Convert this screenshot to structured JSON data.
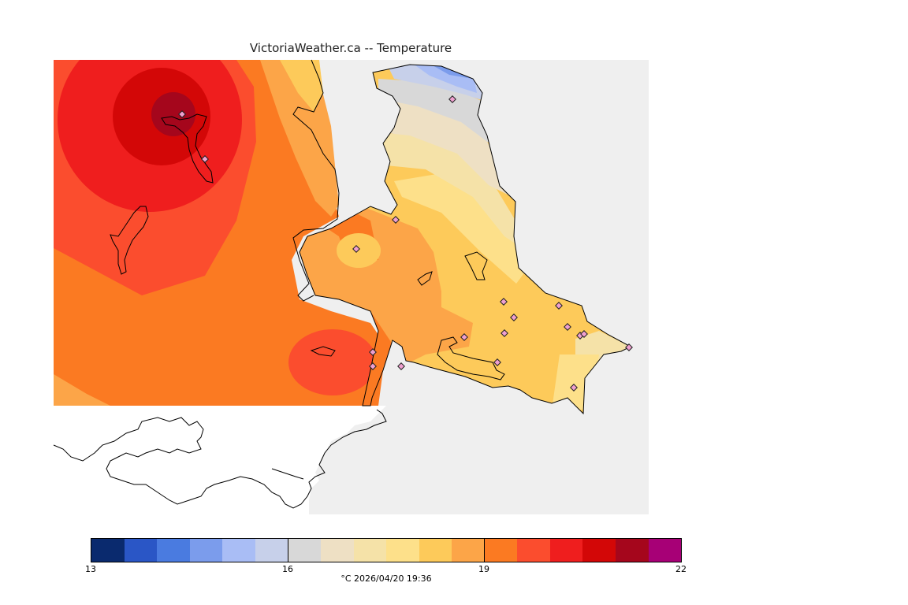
{
  "title": "VictoriaWeather.ca -- Temperature",
  "colorbar": {
    "min": 13,
    "max": 22,
    "tick_labels": [
      "13",
      "16",
      "19",
      "22"
    ],
    "colors": [
      "#0a2a6e",
      "#2a56c6",
      "#4a7be0",
      "#7b9cec",
      "#a9bdf5",
      "#c7d0ea",
      "#d8d8d8",
      "#eee0c4",
      "#f5e2a8",
      "#fde08a",
      "#fdca5a",
      "#fca548",
      "#fb7a22",
      "#fb4d2e",
      "#ef1e1e",
      "#d30707",
      "#a5061c",
      "#a70076"
    ],
    "units_label": "°C  2026/04/20 19:36"
  },
  "map": {
    "ocean_color": "#efefef",
    "outside_color": "#ffffff",
    "station_count": 19
  }
}
